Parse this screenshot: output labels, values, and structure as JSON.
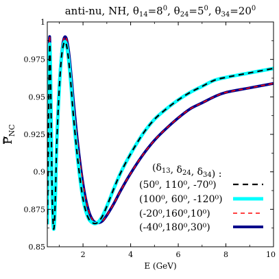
{
  "chart_data": {
    "type": "line",
    "title": {
      "prefix": "anti-nu, NH, ",
      "parts": [
        {
          "sym": "θ",
          "sub": "14",
          "eq": "=8",
          "sup": "0",
          "sep": ", "
        },
        {
          "sym": "θ",
          "sub": "24",
          "eq": "=5",
          "sup": "0",
          "sep": ", "
        },
        {
          "sym": "θ",
          "sub": "34",
          "eq": "=20",
          "sup": "0",
          "sep": ""
        }
      ]
    },
    "xlabel": "E (GeV)",
    "ylabel": {
      "main": "P",
      "sub": "NC"
    },
    "xlim": [
      0.5,
      10
    ],
    "ylim": [
      0.85,
      1.0
    ],
    "xticks": [
      "2",
      "4",
      "6",
      "8",
      "10"
    ],
    "xtick_values": [
      2,
      4,
      6,
      8,
      10
    ],
    "yticks": [
      "0.85",
      "0.875",
      "0.9",
      "0.925",
      "0.95",
      "0.975",
      "1"
    ],
    "ytick_values": [
      0.85,
      0.875,
      0.9,
      0.925,
      0.95,
      0.975,
      1.0
    ],
    "grid": false,
    "legend": {
      "position": "bottom-right",
      "header": "(δ13, δ24, δ34) :"
    },
    "series": [
      {
        "name": "(50⁰, 110⁰, -70⁰)",
        "color": "#000000",
        "style": "dashed",
        "x": [
          0.5,
          0.55,
          0.6,
          0.65,
          0.7,
          0.75,
          0.8,
          0.85,
          0.9,
          1.0,
          1.1,
          1.2,
          1.3,
          1.4,
          1.5,
          1.6,
          1.8,
          2.0,
          2.2,
          2.4,
          2.6,
          2.8,
          3.0,
          3.3,
          3.6,
          4.0,
          4.5,
          5.0,
          5.5,
          6.0,
          6.5,
          7.0,
          7.5,
          8.0,
          9.0,
          10.0
        ],
        "y": [
          0.865,
          0.93,
          0.985,
          0.95,
          0.89,
          0.864,
          0.866,
          0.89,
          0.92,
          0.955,
          0.977,
          0.986,
          0.985,
          0.974,
          0.957,
          0.937,
          0.905,
          0.882,
          0.87,
          0.866,
          0.866,
          0.87,
          0.877,
          0.889,
          0.9,
          0.912,
          0.925,
          0.935,
          0.942,
          0.948,
          0.953,
          0.957,
          0.961,
          0.963,
          0.966,
          0.969
        ]
      },
      {
        "name": "(100⁰, 60⁰, -120⁰)",
        "color": "#00ffff",
        "style": "solid",
        "x": [
          0.5,
          0.55,
          0.6,
          0.65,
          0.7,
          0.75,
          0.8,
          0.85,
          0.9,
          1.0,
          1.1,
          1.2,
          1.3,
          1.4,
          1.5,
          1.6,
          1.8,
          2.0,
          2.2,
          2.4,
          2.6,
          2.8,
          3.0,
          3.3,
          3.6,
          4.0,
          4.5,
          5.0,
          5.5,
          6.0,
          6.5,
          7.0,
          7.5,
          8.0,
          9.0,
          10.0
        ],
        "y": [
          0.865,
          0.93,
          0.985,
          0.95,
          0.89,
          0.864,
          0.866,
          0.89,
          0.92,
          0.955,
          0.977,
          0.986,
          0.985,
          0.974,
          0.957,
          0.937,
          0.905,
          0.882,
          0.87,
          0.866,
          0.866,
          0.87,
          0.877,
          0.889,
          0.9,
          0.912,
          0.925,
          0.935,
          0.942,
          0.948,
          0.953,
          0.957,
          0.961,
          0.963,
          0.966,
          0.969
        ]
      },
      {
        "name": "(-20⁰,160⁰,10⁰)",
        "color": "#ff0000",
        "style": "dashed",
        "x": [
          0.5,
          0.55,
          0.6,
          0.65,
          0.7,
          0.75,
          0.8,
          0.85,
          0.9,
          1.0,
          1.1,
          1.2,
          1.3,
          1.4,
          1.5,
          1.6,
          1.8,
          2.0,
          2.2,
          2.4,
          2.6,
          2.8,
          3.0,
          3.3,
          3.6,
          4.0,
          4.5,
          5.0,
          5.5,
          6.0,
          6.5,
          7.0,
          7.5,
          8.0,
          9.0,
          10.0
        ],
        "y": [
          0.875,
          0.95,
          0.99,
          0.93,
          0.88,
          0.866,
          0.87,
          0.895,
          0.925,
          0.958,
          0.979,
          0.989,
          0.989,
          0.98,
          0.965,
          0.947,
          0.916,
          0.892,
          0.876,
          0.868,
          0.866,
          0.867,
          0.871,
          0.879,
          0.888,
          0.899,
          0.911,
          0.921,
          0.929,
          0.936,
          0.942,
          0.946,
          0.95,
          0.953,
          0.956,
          0.959
        ]
      },
      {
        "name": "(-40⁰,180⁰,30⁰)",
        "color": "#00008b",
        "style": "solid",
        "x": [
          0.5,
          0.55,
          0.6,
          0.65,
          0.7,
          0.75,
          0.8,
          0.85,
          0.9,
          1.0,
          1.1,
          1.2,
          1.3,
          1.4,
          1.5,
          1.6,
          1.8,
          2.0,
          2.2,
          2.4,
          2.6,
          2.8,
          3.0,
          3.3,
          3.6,
          4.0,
          4.5,
          5.0,
          5.5,
          6.0,
          6.5,
          7.0,
          7.5,
          8.0,
          9.0,
          10.0
        ],
        "y": [
          0.875,
          0.95,
          0.99,
          0.93,
          0.88,
          0.866,
          0.87,
          0.895,
          0.925,
          0.958,
          0.979,
          0.989,
          0.989,
          0.98,
          0.965,
          0.947,
          0.916,
          0.892,
          0.876,
          0.868,
          0.866,
          0.867,
          0.871,
          0.879,
          0.888,
          0.899,
          0.911,
          0.921,
          0.929,
          0.936,
          0.942,
          0.946,
          0.95,
          0.953,
          0.956,
          0.959
        ]
      }
    ],
    "draw_order": [
      3,
      2,
      1,
      0
    ]
  }
}
